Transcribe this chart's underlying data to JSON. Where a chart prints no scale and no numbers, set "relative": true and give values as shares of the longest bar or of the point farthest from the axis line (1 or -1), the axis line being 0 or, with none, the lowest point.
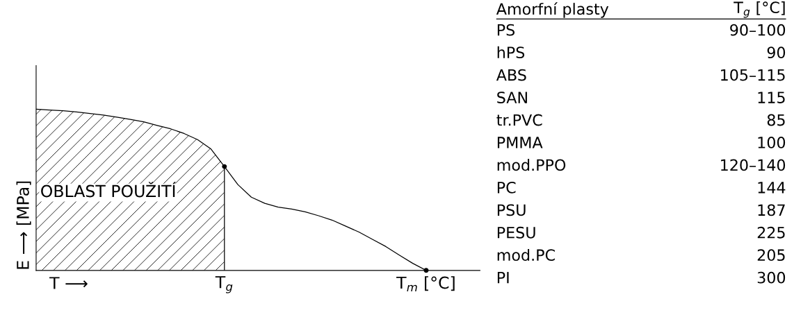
{
  "chart_data": [
    {
      "type": "line",
      "relative": true,
      "xlabel": "T ⟶",
      "ylabel": "E ⟶ [MPa]",
      "categories": [
        null,
        null,
        null,
        null,
        null,
        null,
        null,
        null,
        null,
        null,
        null,
        null,
        null,
        null,
        "T$_{g}$",
        null,
        null,
        null,
        null,
        null,
        null,
        null,
        null,
        null,
        null,
        null,
        null,
        null,
        null,
        "T$_{m}$ [°C]",
        null,
        null,
        null,
        null
      ],
      "tick_labels": "x",
      "grid": false,
      "series": [
        {
          "color": "#000000",
          "values": [
            1,
            0.995,
            0.99,
            0.983,
            0.973,
            0.963,
            0.95,
            0.936,
            0.921,
            0.899,
            0.878,
            0.849,
            0.811,
            0.753,
            0.644,
            0.532,
            0.454,
            0.416,
            0.392,
            0.38,
            0.363,
            0.339,
            0.312,
            0.275,
            0.238,
            0.193,
            0.148,
            0.095,
            0.044,
            0,
            null,
            null,
            null,
            null
          ]
        }
      ],
      "annotations": [
        "OBLAST POUŽITÍ"
      ]
    },
    {
      "type": "other",
      "title": "Amorfní plasty",
      "subtitle": "T$_{g}$ [°C]",
      "categories": [
        "PS",
        "hPS",
        "ABS",
        "SAN",
        "tr.PVC",
        "PMMA",
        "mod.PPO",
        "PC",
        "PSU",
        "PESU",
        "mod.PC",
        "PI"
      ],
      "value_labels": [
        "90–100",
        "90",
        "105–115",
        "115",
        "85",
        "100",
        "120–140",
        "144",
        "187",
        "225",
        "205",
        "300"
      ]
    }
  ]
}
